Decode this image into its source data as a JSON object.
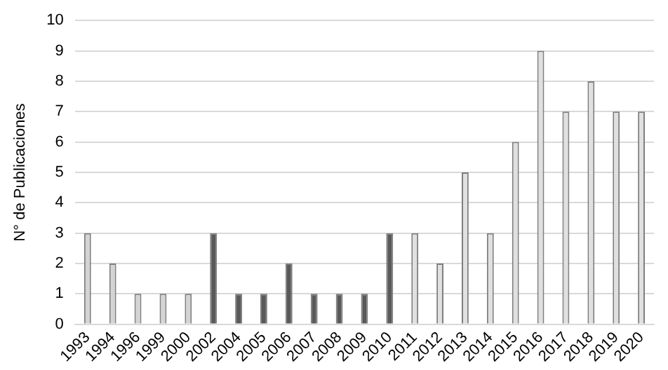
{
  "chart_data": {
    "type": "bar",
    "ylabel": "N° de Publicaciones",
    "categories": [
      "1993",
      "1994",
      "1996",
      "1999",
      "2000",
      "2002",
      "2004",
      "2005",
      "2006",
      "2007",
      "2008",
      "2009",
      "2010",
      "2011",
      "2012",
      "2013",
      "2014",
      "2015",
      "2016",
      "2017",
      "2018",
      "2019",
      "2020"
    ],
    "values": [
      3,
      2,
      1,
      1,
      1,
      3,
      1,
      1,
      2,
      1,
      1,
      1,
      3,
      3,
      2,
      5,
      3,
      6,
      9,
      7,
      8,
      7,
      7
    ],
    "colors": [
      "#d4d4d4",
      "#d4d4d4",
      "#d4d4d4",
      "#d4d4d4",
      "#d4d4d4",
      "#595959",
      "#595959",
      "#595959",
      "#595959",
      "#595959",
      "#595959",
      "#595959",
      "#595959",
      "#e0e0e0",
      "#e0e0e0",
      "#e0e0e0",
      "#e0e0e0",
      "#e0e0e0",
      "#e0e0e0",
      "#e0e0e0",
      "#e0e0e0",
      "#e0e0e0",
      "#e0e0e0"
    ],
    "ylim": [
      0,
      10
    ],
    "yticks": [
      0,
      1,
      2,
      3,
      4,
      5,
      6,
      7,
      8,
      9,
      10
    ],
    "grid": "y"
  }
}
